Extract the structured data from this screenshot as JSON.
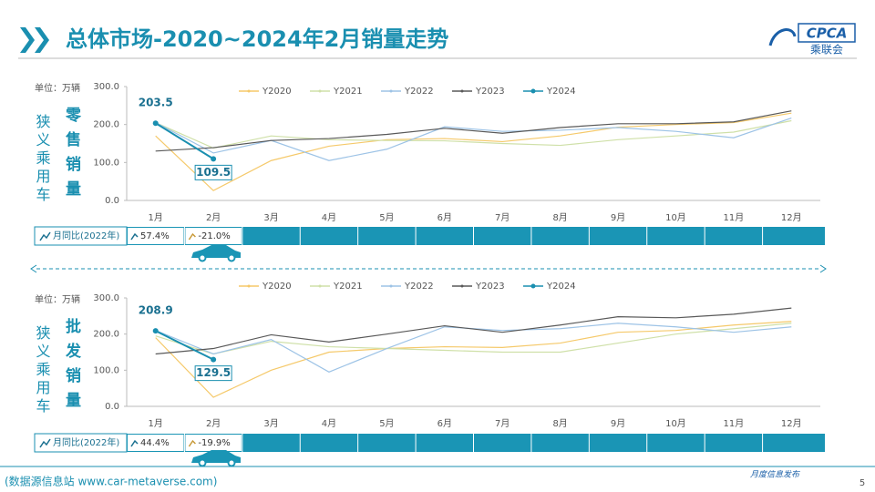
{
  "header": {
    "title": "总体市场-2020~2024年2月销量走势",
    "logo": "CPCA",
    "logo_sub": "乘联会"
  },
  "chart_data": [
    {
      "type": "line",
      "unit": "单位：万辆",
      "side_label": "狭义乘用车",
      "metric_label": "零售销量",
      "categories": [
        "1月",
        "2月",
        "3月",
        "4月",
        "5月",
        "6月",
        "7月",
        "8月",
        "9月",
        "10月",
        "11月",
        "12月"
      ],
      "ylim": [
        0,
        300
      ],
      "yticks": [
        {
          "value": 0,
          "label": "0.0"
        },
        {
          "value": 100,
          "label": "100.0"
        },
        {
          "value": 200,
          "label": "200.0"
        },
        {
          "value": 300,
          "label": "300.0"
        }
      ],
      "series": [
        {
          "name": "Y2020",
          "color": "#f5c96a",
          "values": [
            170,
            26,
            105,
            143,
            160,
            163,
            155,
            170,
            193,
            200,
            205,
            230
          ]
        },
        {
          "name": "Y2021",
          "color": "#cfe0a8",
          "values": [
            205,
            138,
            170,
            160,
            158,
            157,
            150,
            145,
            160,
            170,
            180,
            210
          ]
        },
        {
          "name": "Y2022",
          "color": "#9dc3e6",
          "values": [
            205,
            125,
            158,
            105,
            135,
            194,
            182,
            185,
            192,
            182,
            165,
            217
          ]
        },
        {
          "name": "Y2023",
          "color": "#595959",
          "values": [
            130,
            139,
            158,
            163,
            174,
            190,
            177,
            192,
            202,
            202,
            207,
            236
          ]
        },
        {
          "name": "Y2024",
          "color": "#1a8fb0",
          "values": [
            203.5,
            109.5,
            null,
            null,
            null,
            null,
            null,
            null,
            null,
            null,
            null,
            null
          ]
        }
      ],
      "yoy": {
        "label": "月同比(2022年)",
        "values": [
          57.4,
          -21.0
        ],
        "value_labels": [
          "57.4%",
          "-21.0%"
        ]
      }
    },
    {
      "type": "line",
      "unit": "单位：万辆",
      "side_label": "狭义乘用车",
      "metric_label": "批发销量",
      "categories": [
        "1月",
        "2月",
        "3月",
        "4月",
        "5月",
        "6月",
        "7月",
        "8月",
        "9月",
        "10月",
        "11月",
        "12月"
      ],
      "ylim": [
        0,
        300
      ],
      "yticks": [
        {
          "value": 0,
          "label": "0.0"
        },
        {
          "value": 100,
          "label": "100.0"
        },
        {
          "value": 200,
          "label": "200.0"
        },
        {
          "value": 300,
          "label": "300.0"
        }
      ],
      "series": [
        {
          "name": "Y2020",
          "color": "#f5c96a",
          "values": [
            190,
            25,
            100,
            150,
            160,
            165,
            163,
            175,
            205,
            210,
            225,
            235
          ]
        },
        {
          "name": "Y2021",
          "color": "#cfe0a8",
          "values": [
            195,
            145,
            180,
            165,
            160,
            155,
            150,
            150,
            175,
            200,
            215,
            230
          ]
        },
        {
          "name": "Y2022",
          "color": "#9dc3e6",
          "values": [
            210,
            145,
            185,
            95,
            160,
            220,
            210,
            215,
            230,
            220,
            205,
            220
          ]
        },
        {
          "name": "Y2023",
          "color": "#595959",
          "values": [
            145,
            160,
            198,
            178,
            200,
            223,
            205,
            225,
            248,
            245,
            255,
            272
          ]
        },
        {
          "name": "Y2024",
          "color": "#1a8fb0",
          "values": [
            208.9,
            129.5,
            null,
            null,
            null,
            null,
            null,
            null,
            null,
            null,
            null,
            null
          ]
        }
      ],
      "yoy": {
        "label": "月同比(2022年)",
        "values": [
          44.4,
          -19.9
        ],
        "value_labels": [
          "44.4%",
          "-19.9%"
        ]
      }
    }
  ],
  "footer": {
    "source": "(数据源信息站 www.car-metaverse.com)",
    "note": "月度信息发布",
    "page": "5"
  }
}
